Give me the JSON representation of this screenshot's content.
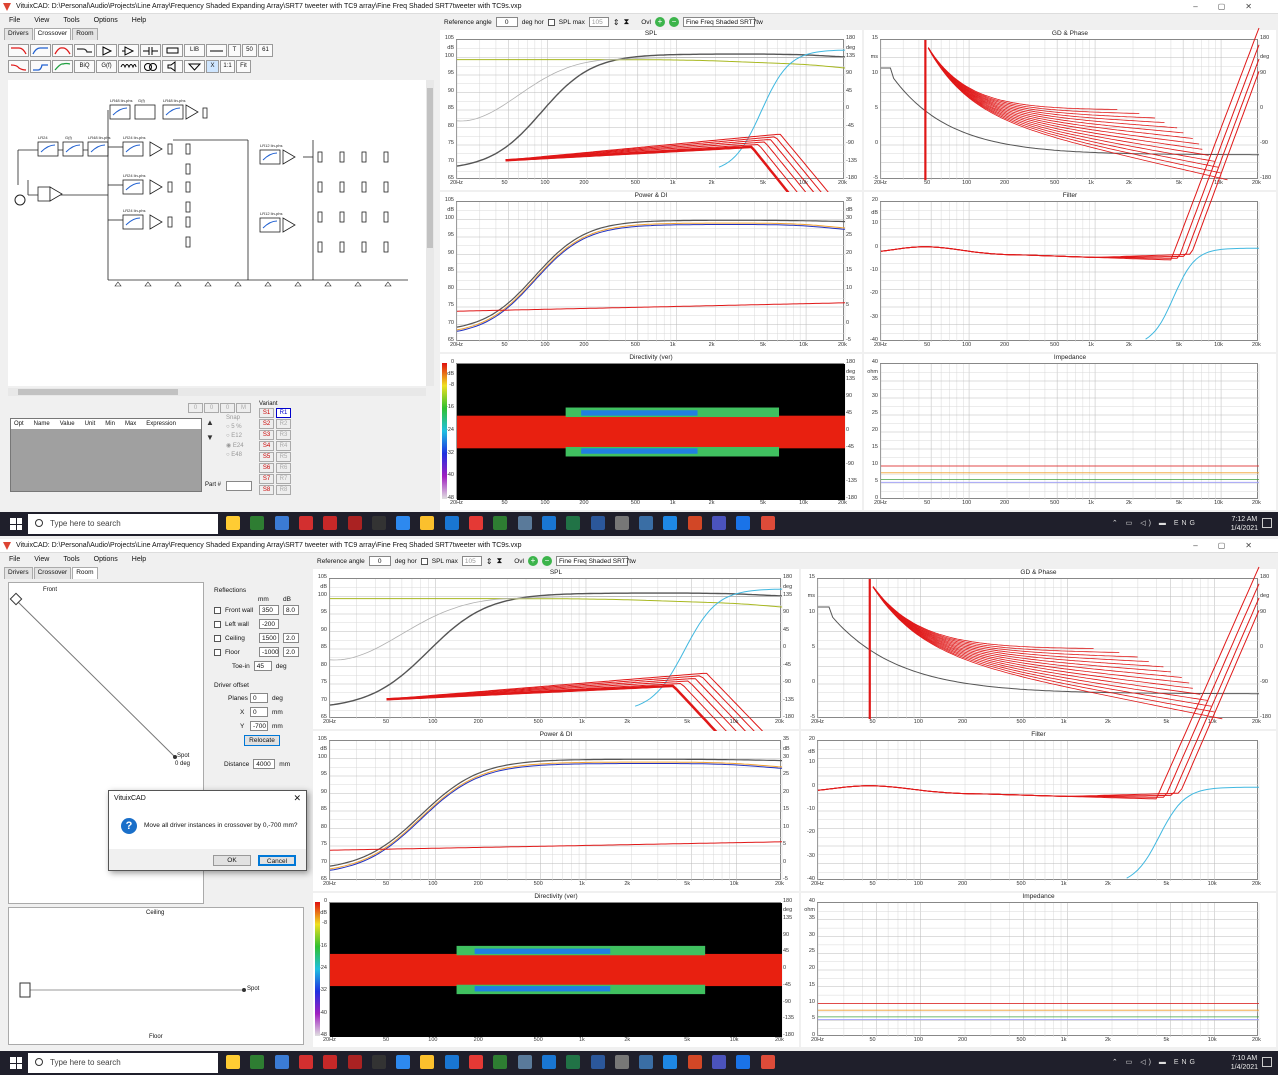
{
  "top": {
    "title": "VituixCAD: D:\\Personal\\Audio\\Projects\\Line Array\\Frequency Shaded Expanding Array\\SRT7 tweeter with TC9 array\\Fine Freq Shaded SRT7tweeter with TC9s.vxp",
    "menu": [
      "File",
      "View",
      "Tools",
      "Options",
      "Help"
    ],
    "tabs": [
      "Drivers",
      "Crossover",
      "Room"
    ],
    "active_tab": "Crossover",
    "toolbar_row1": [
      "",
      "",
      "",
      "",
      "",
      "",
      "",
      "",
      "LIB",
      "",
      "T",
      "50",
      "61"
    ],
    "toolbar_row2": [
      "",
      "",
      "",
      "BiQ",
      "G(f)",
      "",
      "",
      "",
      "",
      "X",
      "1:1",
      "Fit"
    ],
    "ref_angle_label": "Reference angle",
    "ref_angle_value": "0",
    "ref_angle_unit": "deg hor",
    "spl_max_label": "SPL max",
    "spl_max_value": "105",
    "ovl_label": "Ovl",
    "overlay_name": "Fine Freq Shaded SRT7tw",
    "param_headers": [
      "Opt",
      "Name",
      "Value",
      "Unit",
      "Min",
      "Max",
      "Expression"
    ],
    "variant_label": "Variant",
    "variant_s": [
      "S1",
      "S2",
      "S3",
      "S4",
      "S5",
      "S6",
      "S7",
      "S8"
    ],
    "variant_r": [
      "R1",
      "R2",
      "R3",
      "R4",
      "R5",
      "R6",
      "R7",
      "R8"
    ],
    "snap_label": "Snap",
    "snap_opts": [
      "5 %",
      "E12",
      "E24",
      "E48"
    ],
    "part_label": "Part #",
    "clock_time": "7:12 AM",
    "clock_date": "1/4/2021",
    "schematic_blocks": [
      "LR48 lin-phs",
      "G(f)",
      "LR48 lin-phs",
      "LR24",
      "G(f)",
      "LR48 lin-phs",
      "LR24 lin-phs",
      "LR24 lin-phs",
      "LR24 lin-phs",
      "LR12 lin-phs",
      "LR12 lin-phs"
    ]
  },
  "bottom": {
    "title": "VituixCAD: D:\\Personal\\Audio\\Projects\\Line Array\\Frequency Shaded Expanding Array\\SRT7 tweeter with TC9 array\\Fine Freq Shaded SRT7tweeter with TC9s.vxp",
    "menu": [
      "File",
      "View",
      "Tools",
      "Options",
      "Help"
    ],
    "tabs": [
      "Drivers",
      "Crossover",
      "Room"
    ],
    "active_tab": "Room",
    "ref_angle_label": "Reference angle",
    "ref_angle_value": "0",
    "ref_angle_unit": "deg hor",
    "spl_max_label": "SPL max",
    "spl_max_value": "105",
    "ovl_label": "Ovl",
    "overlay_name": "Fine Freq Shaded SRT7tw",
    "front_label": "Front",
    "spot_label": "Spot",
    "spot_angle": "0 deg",
    "ceiling_label": "Ceiling",
    "floor_label": "Floor",
    "reflections_label": "Reflections",
    "mm_label": "mm",
    "db_label": "dB",
    "reflections": [
      {
        "name": "Front wall",
        "mm": "350",
        "db": "8.0"
      },
      {
        "name": "Left wall",
        "mm": "-200",
        "db": ""
      },
      {
        "name": "Ceiling",
        "mm": "1500",
        "db": "2.0"
      },
      {
        "name": "Floor",
        "mm": "-1000",
        "db": "2.0"
      }
    ],
    "toe_in_label": "Toe-in",
    "toe_in_value": "45",
    "toe_in_unit": "deg",
    "driver_offset_label": "Driver offset",
    "planes_label": "Planes",
    "planes_value": "0",
    "planes_unit": "deg",
    "x_label": "X",
    "x_value": "0",
    "x_unit": "mm",
    "y_label": "Y",
    "y_value": "-700",
    "y_unit": "mm",
    "relocate_label": "Relocate",
    "distance_label": "Distance",
    "distance_value": "4000",
    "distance_unit": "mm",
    "dialog": {
      "title": "VituixCAD",
      "message": "Move all driver instances in crossover by 0,-700 mm?",
      "ok": "OK",
      "cancel": "Cancel"
    },
    "clock_time": "7:10 AM",
    "clock_date": "1/4/2021"
  },
  "search_placeholder": "Type here to search",
  "graph_titles": {
    "spl": "SPL",
    "gd_phase": "GD & Phase",
    "power_di": "Power & DI",
    "filter": "Filter",
    "directivity": "Directivity (ver)",
    "impedance": "Impedance"
  },
  "axes": {
    "x_ticks": [
      "20Hz",
      "50",
      "100",
      "200",
      "500",
      "1k",
      "2k",
      "5k",
      "10k",
      "20k"
    ],
    "spl_left": [
      "105",
      "100",
      "95",
      "90",
      "85",
      "80",
      "75",
      "70",
      "65"
    ],
    "spl_right": [
      "180",
      "135",
      "90",
      "45",
      "0",
      "-45",
      "-90",
      "-135",
      "-180"
    ],
    "spl_left_unit": "dB",
    "spl_right_unit": "deg",
    "gd_left": [
      "15",
      "10",
      "5",
      "0",
      "-5"
    ],
    "gd_left_unit": "ms",
    "gd_right": [
      "180",
      "90",
      "0",
      "-90",
      "-180"
    ],
    "gd_right_unit": "deg",
    "pdi_left": [
      "105",
      "100",
      "95",
      "90",
      "85",
      "80",
      "75",
      "70",
      "65"
    ],
    "pdi_left_unit": "dB",
    "pdi_right": [
      "35",
      "30",
      "25",
      "20",
      "15",
      "10",
      "5",
      "0",
      "-5"
    ],
    "pdi_right_unit": "dB",
    "filt_left": [
      "20",
      "10",
      "0",
      "-10",
      "-20",
      "-30",
      "-40"
    ],
    "filt_left_unit": "dB",
    "dir_left": [
      "0",
      "-8",
      "-16",
      "-24",
      "-32",
      "-40",
      "-48"
    ],
    "dir_left_unit": "dB",
    "dir_right": [
      "180",
      "135",
      "90",
      "45",
      "0",
      "-45",
      "-90",
      "-135",
      "-180"
    ],
    "dir_right_unit": "deg",
    "imp_left": [
      "40",
      "35",
      "30",
      "25",
      "20",
      "15",
      "10",
      "5",
      "0"
    ],
    "imp_left_unit": "ohm"
  },
  "colors": {
    "red": "#e01818",
    "dark": "#555555",
    "light_gray": "#b0b0b0",
    "olive": "#a8b820",
    "cyan": "#40b8e0",
    "blue": "#2030c0",
    "orange": "#f0a030",
    "grid": "#d8d8d8"
  }
}
